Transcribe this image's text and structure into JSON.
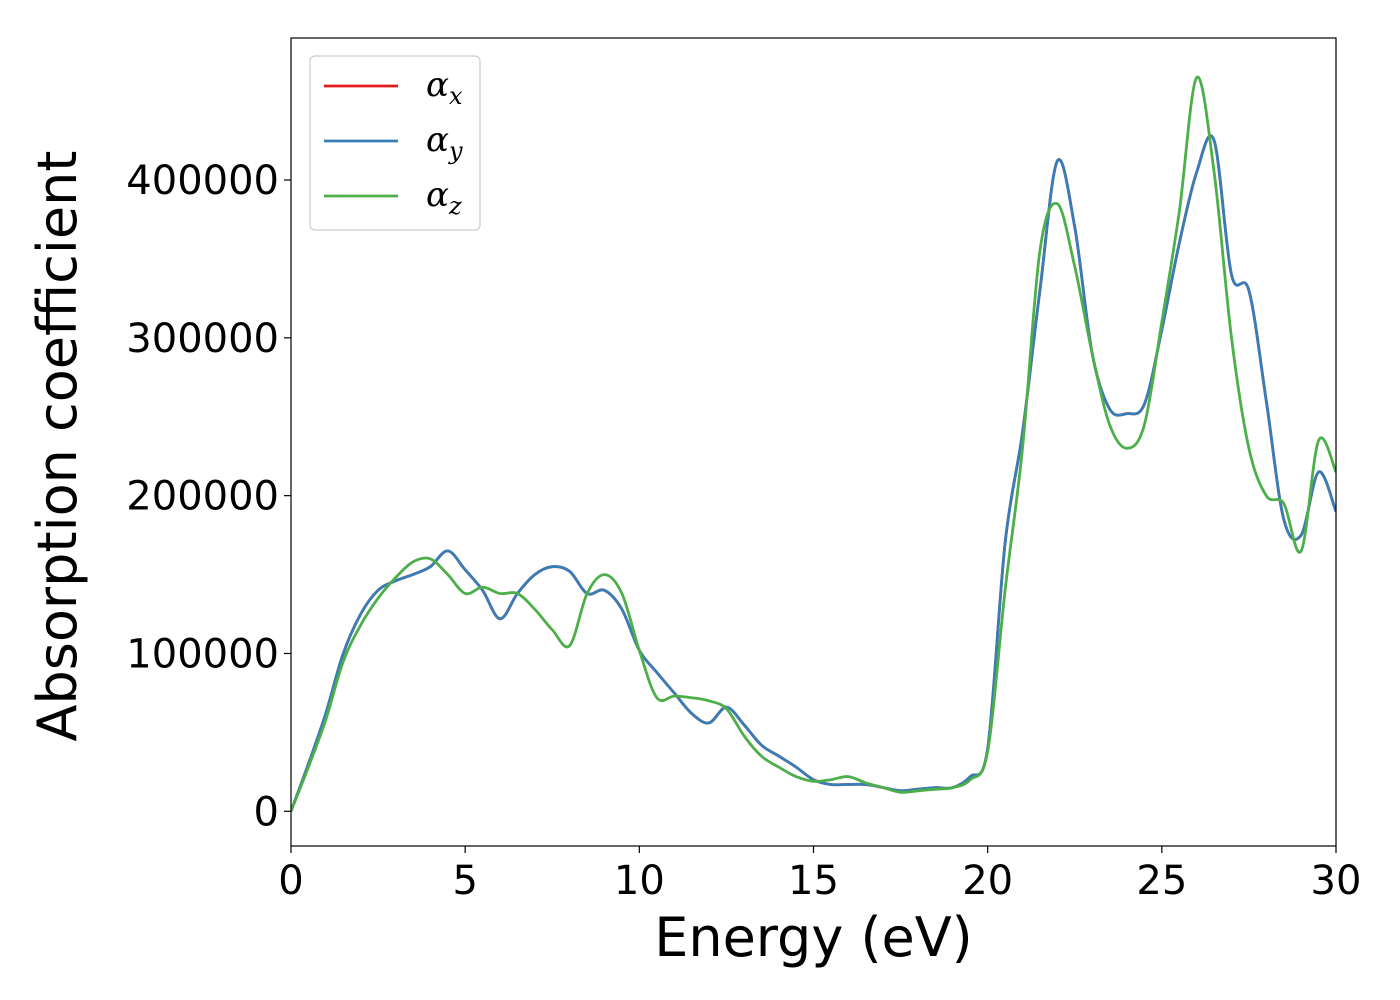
{
  "chart_data": {
    "type": "line",
    "xlabel": "Energy (eV)",
    "ylabel": "Absorption coefficient",
    "xlim": [
      0,
      30
    ],
    "ylim": [
      -22000,
      490000
    ],
    "xticks": [
      0,
      5,
      10,
      15,
      20,
      25,
      30
    ],
    "xtick_labels": [
      "0",
      "5",
      "10",
      "15",
      "20",
      "25",
      "30"
    ],
    "yticks": [
      0,
      100000,
      200000,
      300000,
      400000
    ],
    "ytick_labels": [
      "0",
      "100000",
      "200000",
      "300000",
      "400000"
    ],
    "grid": false,
    "legend": {
      "placement": "top-left",
      "entries": [
        {
          "symbol": "α",
          "subscript": "x",
          "color": "#e41a1c"
        },
        {
          "symbol": "α",
          "subscript": "y",
          "color": "#377eb8"
        },
        {
          "symbol": "α",
          "subscript": "z",
          "color": "#4daf4a"
        }
      ]
    },
    "series": [
      {
        "name": "αx",
        "color": "#e41a1c",
        "x": [
          0,
          0.5,
          1,
          1.5,
          2,
          2.5,
          3,
          3.5,
          4,
          4.5,
          5,
          5.5,
          6,
          6.5,
          7,
          7.5,
          8,
          8.5,
          9,
          9.5,
          10,
          10.5,
          11,
          11.5,
          12,
          12.5,
          13,
          13.5,
          14,
          14.5,
          15,
          15.5,
          16,
          16.5,
          17,
          17.5,
          18,
          18.5,
          19,
          19.5,
          20,
          20.5,
          21,
          21.5,
          22,
          22.5,
          23,
          23.5,
          24,
          24.5,
          25,
          25.5,
          26,
          26.5,
          27,
          27.5,
          28,
          28.5,
          29,
          29.5,
          30
        ],
        "y": [
          0,
          30000,
          62000,
          100000,
          125000,
          140000,
          146000,
          150000,
          155000,
          165000,
          153000,
          140000,
          122000,
          138000,
          150000,
          155000,
          152000,
          138000,
          140000,
          128000,
          102000,
          88000,
          75000,
          62000,
          56000,
          66000,
          55000,
          42000,
          35000,
          28000,
          20000,
          17000,
          17000,
          17000,
          15000,
          13000,
          14000,
          15000,
          15000,
          22000,
          40000,
          170000,
          240000,
          330000,
          412000,
          370000,
          290000,
          255000,
          252000,
          258000,
          305000,
          360000,
          405000,
          425000,
          340000,
          330000,
          260000,
          185000,
          175000,
          215000,
          190000
        ]
      },
      {
        "name": "αy",
        "color": "#377eb8",
        "x": [
          0,
          0.5,
          1,
          1.5,
          2,
          2.5,
          3,
          3.5,
          4,
          4.5,
          5,
          5.5,
          6,
          6.5,
          7,
          7.5,
          8,
          8.5,
          9,
          9.5,
          10,
          10.5,
          11,
          11.5,
          12,
          12.5,
          13,
          13.5,
          14,
          14.5,
          15,
          15.5,
          16,
          16.5,
          17,
          17.5,
          18,
          18.5,
          19,
          19.5,
          20,
          20.5,
          21,
          21.5,
          22,
          22.5,
          23,
          23.5,
          24,
          24.5,
          25,
          25.5,
          26,
          26.5,
          27,
          27.5,
          28,
          28.5,
          29,
          29.5,
          30
        ],
        "y": [
          0,
          30000,
          62000,
          100000,
          125000,
          140000,
          146000,
          150000,
          155000,
          165000,
          153000,
          140000,
          122000,
          138000,
          150000,
          155000,
          152000,
          138000,
          140000,
          128000,
          102000,
          88000,
          75000,
          62000,
          56000,
          66000,
          55000,
          42000,
          35000,
          28000,
          20000,
          17000,
          17000,
          17000,
          15000,
          13000,
          14000,
          15000,
          15000,
          22000,
          40000,
          170000,
          240000,
          330000,
          412000,
          370000,
          290000,
          255000,
          252000,
          258000,
          305000,
          360000,
          405000,
          425000,
          340000,
          330000,
          260000,
          185000,
          175000,
          215000,
          190000
        ]
      },
      {
        "name": "αz",
        "color": "#4daf4a",
        "x": [
          0,
          0.5,
          1,
          1.5,
          2,
          2.5,
          3,
          3.5,
          4,
          4.5,
          5,
          5.5,
          6,
          6.5,
          7,
          7.5,
          8,
          8.5,
          9,
          9.5,
          10,
          10.5,
          11,
          11.5,
          12,
          12.5,
          13,
          13.5,
          14,
          14.5,
          15,
          15.5,
          16,
          16.5,
          17,
          17.5,
          18,
          18.5,
          19,
          19.5,
          20,
          20.5,
          21,
          21.5,
          22,
          22.5,
          23,
          23.5,
          24,
          24.5,
          25,
          25.5,
          26,
          26.5,
          27,
          27.5,
          28,
          28.5,
          29,
          29.5,
          30
        ],
        "y": [
          0,
          28000,
          58000,
          95000,
          118000,
          135000,
          148000,
          158000,
          160000,
          150000,
          138000,
          142000,
          138000,
          138000,
          128000,
          115000,
          105000,
          138000,
          150000,
          138000,
          102000,
          72000,
          73000,
          72000,
          70000,
          65000,
          48000,
          35000,
          28000,
          22000,
          19000,
          20000,
          22000,
          18000,
          15000,
          12000,
          13000,
          14000,
          15000,
          20000,
          38000,
          140000,
          230000,
          355000,
          385000,
          345000,
          290000,
          245000,
          230000,
          245000,
          310000,
          380000,
          465000,
          405000,
          300000,
          230000,
          200000,
          195000,
          165000,
          235000,
          215000
        ]
      }
    ]
  }
}
